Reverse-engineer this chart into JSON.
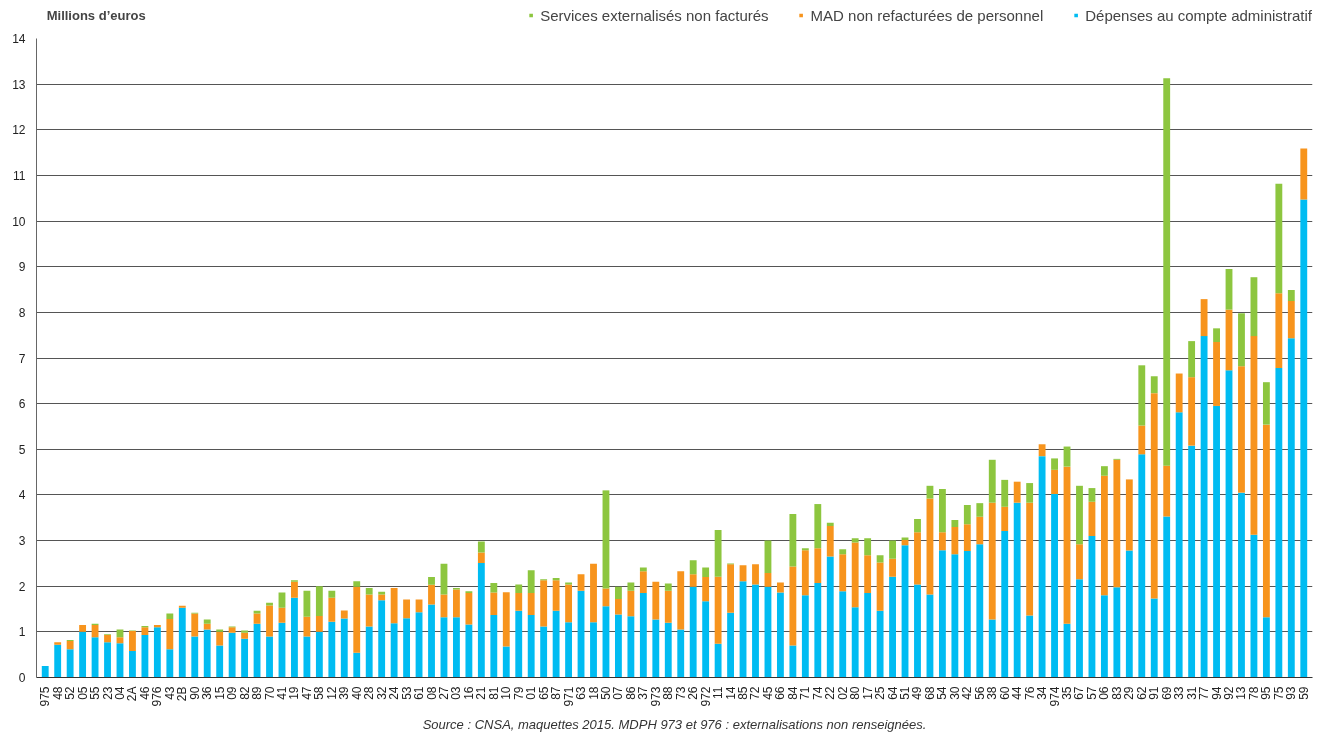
{
  "chart_data": {
    "type": "bar",
    "stacked": true,
    "ylabel": "Millions d’euros",
    "categories": [
      "975",
      "48",
      "52",
      "05",
      "55",
      "23",
      "04",
      "2A",
      "46",
      "976",
      "43",
      "2B",
      "90",
      "36",
      "15",
      "09",
      "82",
      "89",
      "70",
      "41",
      "19",
      "47",
      "58",
      "12",
      "39",
      "40",
      "28",
      "32",
      "24",
      "53",
      "61",
      "08",
      "27",
      "03",
      "16",
      "21",
      "81",
      "10",
      "79",
      "01",
      "65",
      "87",
      "971",
      "63",
      "18",
      "50",
      "07",
      "86",
      "37",
      "973",
      "88",
      "73",
      "26",
      "972",
      "11",
      "14",
      "85",
      "72",
      "45",
      "66",
      "84",
      "71",
      "74",
      "22",
      "02",
      "80",
      "17",
      "25",
      "64",
      "51",
      "49",
      "68",
      "54",
      "30",
      "42",
      "56",
      "38",
      "60",
      "44",
      "76",
      "34",
      "974",
      "35",
      "67",
      "57",
      "06",
      "83",
      "29",
      "62",
      "91",
      "69",
      "33",
      "31",
      "77",
      "94",
      "92",
      "13",
      "78",
      "95",
      "75",
      "93",
      "59"
    ],
    "series": [
      {
        "name": "Dépenses au compte administratif",
        "color": "#00bcf2",
        "values": [
          0.25,
          0.72,
          0.62,
          1.0,
          0.88,
          0.77,
          0.75,
          0.58,
          0.93,
          1.1,
          0.62,
          1.53,
          0.9,
          1.05,
          0.7,
          0.98,
          0.85,
          1.18,
          0.9,
          1.2,
          1.75,
          0.9,
          1.0,
          1.22,
          1.29,
          0.54,
          1.12,
          1.69,
          1.19,
          1.3,
          1.43,
          1.6,
          1.32,
          1.32,
          1.16,
          2.51,
          1.37,
          0.68,
          1.46,
          1.37,
          1.12,
          1.46,
          1.21,
          1.9,
          1.21,
          1.56,
          1.38,
          1.34,
          1.85,
          1.27,
          1.2,
          1.05,
          1.99,
          1.67,
          0.74,
          1.42,
          2.11,
          2.04,
          1.99,
          1.86,
          0.7,
          1.8,
          2.07,
          2.65,
          1.89,
          1.54,
          1.85,
          1.46,
          2.21,
          2.9,
          2.04,
          1.82,
          2.79,
          2.7,
          2.77,
          2.92,
          1.27,
          3.21,
          3.83,
          1.36,
          4.85,
          4.02,
          1.18,
          2.15,
          3.1,
          1.8,
          1.98,
          2.78,
          4.89,
          1.73,
          3.53,
          5.81,
          5.08,
          7.48,
          5.95,
          6.73,
          4.05,
          3.13,
          1.32,
          6.78,
          7.43,
          10.47
        ]
      },
      {
        "name": "MAD non refacturées de personnel",
        "color": "#f7941d",
        "values": [
          0,
          0.05,
          0.18,
          0.15,
          0.27,
          0.16,
          0.13,
          0.44,
          0.17,
          0.05,
          0.66,
          0.04,
          0.5,
          0.13,
          0.3,
          0.12,
          0.13,
          0.22,
          0.68,
          0.33,
          0.35,
          0.43,
          0.35,
          0.53,
          0.18,
          1.45,
          0.7,
          0.13,
          0.77,
          0.41,
          0.28,
          0.43,
          0.5,
          0.61,
          0.69,
          0.23,
          0.49,
          1.19,
          0.39,
          0.48,
          1.01,
          0.67,
          0.83,
          0.36,
          1.28,
          0.39,
          0.34,
          0.56,
          0.48,
          0.83,
          0.7,
          1.28,
          0.27,
          0.53,
          1.47,
          1.06,
          0.35,
          0.44,
          0.3,
          0.22,
          1.73,
          0.99,
          0.76,
          0.67,
          0.81,
          1.42,
          0.83,
          1.06,
          0.39,
          0.11,
          1.14,
          2.1,
          0.39,
          0.6,
          0.59,
          0.6,
          2.56,
          0.53,
          0.46,
          2.47,
          0.26,
          0.53,
          3.44,
          0.77,
          0.75,
          2.62,
          2.79,
          1.56,
          0.63,
          4.5,
          1.11,
          0.85,
          1.5,
          0.81,
          1.4,
          1.33,
          2.77,
          4.35,
          4.22,
          1.64,
          0.82,
          1.12
        ]
      },
      {
        "name": "Services externalisés non facturés",
        "color": "#8dc63f",
        "values": [
          0,
          0,
          0.02,
          0,
          0.03,
          0.02,
          0.17,
          0.01,
          0.03,
          0,
          0.12,
          0,
          0.02,
          0.09,
          0.05,
          0.02,
          0.05,
          0.06,
          0.06,
          0.33,
          0.03,
          0.57,
          0.65,
          0.15,
          0,
          0.12,
          0.14,
          0.06,
          0,
          0,
          0,
          0.17,
          0.67,
          0.03,
          0.04,
          0.24,
          0.21,
          0,
          0.19,
          0.5,
          0.02,
          0.05,
          0.04,
          0,
          0,
          2.15,
          0.27,
          0.18,
          0.08,
          0,
          0.16,
          0,
          0.31,
          0.21,
          1.02,
          0.02,
          0,
          0,
          0.71,
          0,
          1.15,
          0.04,
          0.97,
          0.07,
          0.11,
          0.09,
          0.37,
          0.16,
          0.4,
          0.06,
          0.29,
          0.28,
          0.95,
          0.15,
          0.42,
          0.3,
          0.94,
          0.59,
          0,
          0.43,
          0,
          0.25,
          0.44,
          1.28,
          0.3,
          0.21,
          0.02,
          0,
          1.32,
          0.37,
          8.49,
          0,
          0.79,
          0,
          0.3,
          0.89,
          1.16,
          1.29,
          0.93,
          2.4,
          0.24,
          0
        ]
      }
    ],
    "ylim": [
      0,
      14
    ],
    "yticks": [
      0,
      1,
      2,
      3,
      4,
      5,
      6,
      7,
      8,
      9,
      10,
      11,
      12,
      13,
      14
    ],
    "grid": "y",
    "legend": "top",
    "annotations": [
      "Source : CNSA, maquettes 2015. MDPH 973 et 976 : externalisations non renseignées."
    ]
  }
}
